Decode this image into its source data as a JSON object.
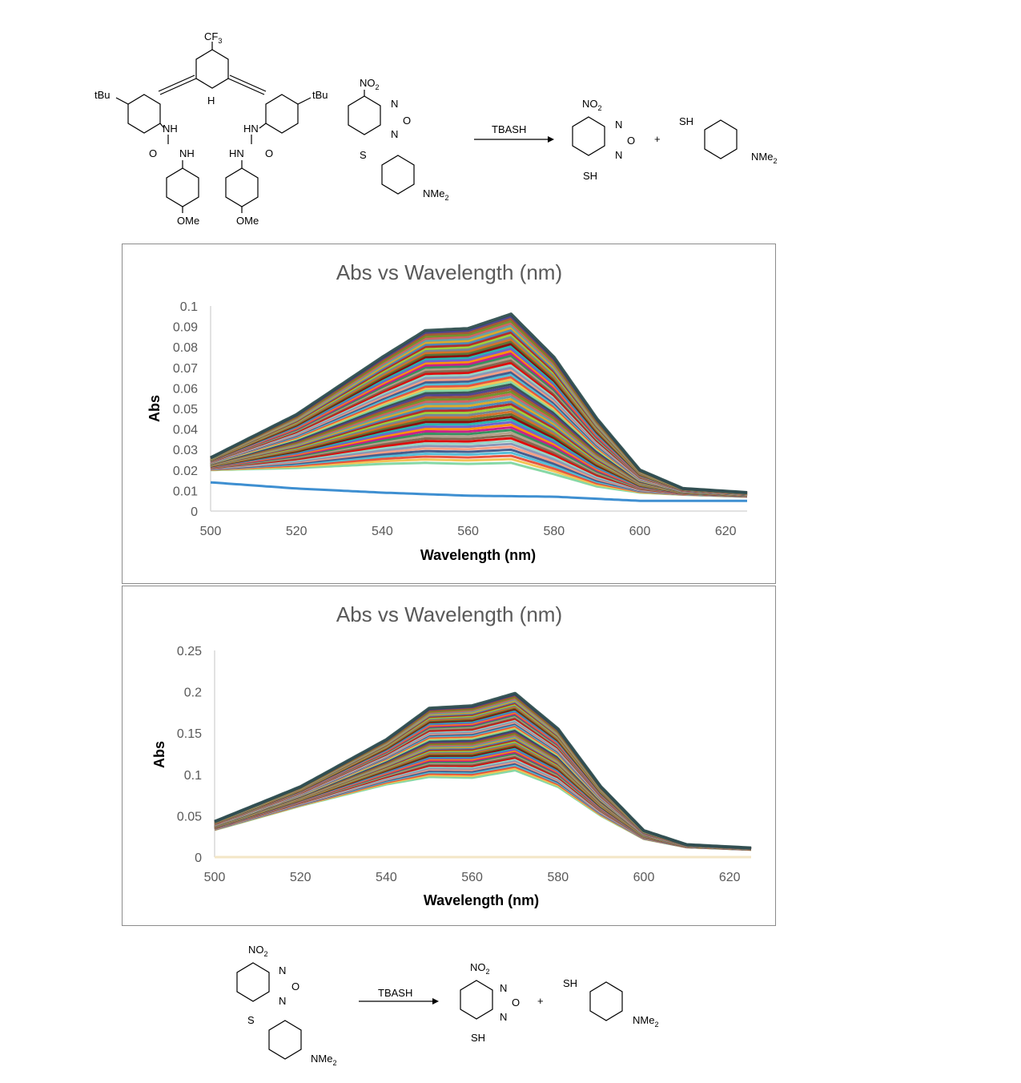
{
  "scheme_top": {
    "receptor": {
      "cf3": "CF3",
      "h": "H",
      "tbu_left": "tBu",
      "tbu_right": "tBu",
      "nh_left": "NH",
      "hn_right": "HN",
      "o_left": "O",
      "o_right": "O",
      "nh_left_2": "NH",
      "hn_right_2": "HN",
      "ome_left": "OMe",
      "ome_right": "OMe"
    },
    "substrate": {
      "no2": "NO2",
      "n_top": "N",
      "o_ring": "O",
      "n_bottom": "N",
      "s": "S",
      "nme2": "NMe2"
    },
    "reagent": "TBASH",
    "product1": {
      "no2": "NO2",
      "n_top": "N",
      "o_ring": "O",
      "n_bottom": "N",
      "sh": "SH"
    },
    "plus": "+",
    "product2": {
      "sh": "SH",
      "nme2": "NMe2"
    }
  },
  "scheme_bottom": {
    "substrate": {
      "no2": "NO2",
      "n_top": "N",
      "o_ring": "O",
      "n_bottom": "N",
      "s": "S",
      "nme2": "NMe2"
    },
    "reagent": "TBASH",
    "product1": {
      "no2": "NO2",
      "n_top": "N",
      "o_ring": "O",
      "n_bottom": "N",
      "sh": "SH"
    },
    "plus": "+",
    "product2": {
      "sh": "SH",
      "nme2": "NMe2"
    }
  },
  "chart_data": [
    {
      "type": "line",
      "title": "Abs vs Wavelength (nm)",
      "xlabel": "Wavelength (nm)",
      "ylabel": "Abs",
      "xlim": [
        500,
        625
      ],
      "ylim": [
        0,
        0.1
      ],
      "x_ticks": [
        "500",
        "520",
        "540",
        "560",
        "580",
        "600",
        "620"
      ],
      "y_ticks": [
        "0",
        "0.01",
        "0.02",
        "0.03",
        "0.04",
        "0.05",
        "0.06",
        "0.07",
        "0.08",
        "0.09",
        "0.1"
      ],
      "grid": false,
      "legend": "none",
      "series_count": 60,
      "envelope": {
        "x": [
          500,
          520,
          540,
          550,
          560,
          570,
          580,
          590,
          600,
          610,
          625
        ],
        "min_y": [
          0.02,
          0.021,
          0.023,
          0.0235,
          0.023,
          0.0235,
          0.018,
          0.012,
          0.009,
          0.008,
          0.007
        ],
        "max_y": [
          0.026,
          0.047,
          0.075,
          0.088,
          0.089,
          0.096,
          0.075,
          0.045,
          0.02,
          0.011,
          0.009
        ]
      },
      "baseline_series": {
        "color": "#3E8FD1",
        "x": [
          500,
          520,
          540,
          560,
          580,
          600,
          625
        ],
        "y": [
          0.014,
          0.011,
          0.009,
          0.0075,
          0.007,
          0.005,
          0.005
        ]
      },
      "palette": [
        "#7FD6A0",
        "#F2C14E",
        "#E64B35",
        "#4DBBD5",
        "#3C5488",
        "#F39B7F",
        "#8491B4",
        "#91D1C2",
        "#DC0000",
        "#7E6148",
        "#B09C85",
        "#2E8B57",
        "#C71585",
        "#FF8C00",
        "#6A5ACD",
        "#20B2AA",
        "#8B0000",
        "#556B2F",
        "#D2691E",
        "#708090",
        "#9ACD32",
        "#B22222",
        "#4682B4",
        "#DAA520",
        "#5F9EA0",
        "#CD5C5C",
        "#6B8E23",
        "#A0522D",
        "#483D8B",
        "#2F4F4F"
      ]
    },
    {
      "type": "line",
      "title": "Abs vs Wavelength (nm)",
      "xlabel": "Wavelength (nm)",
      "ylabel": "Abs",
      "xlim": [
        500,
        625
      ],
      "ylim": [
        0,
        0.25
      ],
      "x_ticks": [
        "500",
        "520",
        "540",
        "560",
        "580",
        "600",
        "620"
      ],
      "y_ticks": [
        "0",
        "0.05",
        "0.1",
        "0.15",
        "0.2",
        "0.25"
      ],
      "grid": false,
      "legend": "none",
      "series_count": 60,
      "envelope": {
        "x": [
          500,
          520,
          540,
          550,
          560,
          570,
          580,
          590,
          600,
          610,
          625
        ],
        "min_y": [
          0.033,
          0.062,
          0.088,
          0.097,
          0.096,
          0.105,
          0.085,
          0.05,
          0.022,
          0.012,
          0.009
        ],
        "max_y": [
          0.043,
          0.085,
          0.142,
          0.18,
          0.183,
          0.198,
          0.155,
          0.085,
          0.032,
          0.015,
          0.011
        ]
      },
      "baseline_series": {
        "color": "#F3E6C6",
        "x": [
          500,
          625
        ],
        "y": [
          0.0,
          0.0
        ]
      },
      "palette": [
        "#7FD6A0",
        "#F2C14E",
        "#E64B35",
        "#4DBBD5",
        "#3C5488",
        "#F39B7F",
        "#8491B4",
        "#91D1C2",
        "#DC0000",
        "#7E6148",
        "#B09C85",
        "#2E8B57",
        "#C71585",
        "#FF8C00",
        "#6A5ACD",
        "#20B2AA",
        "#8B0000",
        "#556B2F",
        "#D2691E",
        "#708090",
        "#9ACD32",
        "#B22222",
        "#4682B4",
        "#DAA520",
        "#5F9EA0",
        "#CD5C5C",
        "#6B8E23",
        "#A0522D",
        "#483D8B",
        "#2F4F4F"
      ]
    }
  ]
}
